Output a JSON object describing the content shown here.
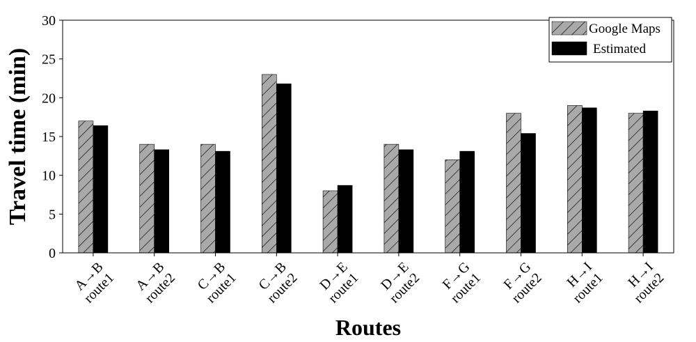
{
  "chart_data": {
    "type": "bar",
    "xlabel": "Routes",
    "ylabel": "Travel time (min)",
    "ylim": [
      0,
      30
    ],
    "yticks": [
      "0",
      "5",
      "10",
      "15",
      "20",
      "25",
      "30"
    ],
    "categories": [
      [
        "A→B",
        "route1"
      ],
      [
        "A→B",
        "route2"
      ],
      [
        "C→B",
        "route1"
      ],
      [
        "C→B",
        "route2"
      ],
      [
        "D→E",
        "route1"
      ],
      [
        "D→E",
        "route2"
      ],
      [
        "F→G",
        "route1"
      ],
      [
        "F→G",
        "route2"
      ],
      [
        "H→I",
        "route1"
      ],
      [
        "H→I",
        "route2"
      ]
    ],
    "series": [
      {
        "name": "Google Maps",
        "color": "#a9a9a9",
        "pattern": "hatch",
        "values": [
          17,
          14,
          14,
          23,
          8,
          14,
          12,
          18,
          19,
          18
        ]
      },
      {
        "name": "Estimated",
        "color": "#000000",
        "pattern": "solid",
        "values": [
          16.4,
          13.3,
          13.1,
          21.8,
          8.7,
          13.3,
          13.1,
          15.4,
          18.7,
          18.3
        ]
      }
    ],
    "legend_position": "top-right",
    "grid": false
  }
}
